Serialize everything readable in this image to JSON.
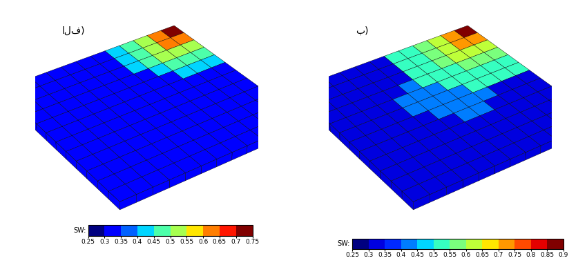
{
  "chart_data": [
    {
      "type": "heatmap",
      "title": "الف)",
      "tick_labels": false,
      "cells": [
        [
          0.75,
          0.6,
          0.5,
          0.45,
          0.4,
          0.3,
          0.3,
          0.3,
          0.3,
          0.3,
          0.3,
          0.3
        ],
        [
          0.6,
          0.6,
          0.5,
          0.45,
          0.4,
          0.3,
          0.3,
          0.3,
          0.3,
          0.3,
          0.3,
          0.3
        ],
        [
          0.5,
          0.5,
          0.5,
          0.45,
          0.4,
          0.3,
          0.3,
          0.3,
          0.3,
          0.3,
          0.3,
          0.3
        ],
        [
          0.45,
          0.45,
          0.45,
          0.4,
          0.3,
          0.3,
          0.3,
          0.3,
          0.3,
          0.3,
          0.3,
          0.3
        ],
        [
          0.4,
          0.4,
          0.4,
          0.3,
          0.3,
          0.3,
          0.3,
          0.3,
          0.3,
          0.3,
          0.3,
          0.3
        ],
        [
          0.3,
          0.3,
          0.3,
          0.3,
          0.3,
          0.3,
          0.3,
          0.3,
          0.3,
          0.3,
          0.3,
          0.3
        ],
        [
          0.3,
          0.3,
          0.3,
          0.3,
          0.3,
          0.3,
          0.3,
          0.3,
          0.3,
          0.3,
          0.3,
          0.3
        ],
        [
          0.3,
          0.3,
          0.3,
          0.3,
          0.3,
          0.3,
          0.3,
          0.3,
          0.3,
          0.3,
          0.3,
          0.3
        ],
        [
          0.3,
          0.3,
          0.3,
          0.3,
          0.3,
          0.3,
          0.3,
          0.3,
          0.3,
          0.3,
          0.3,
          0.3
        ],
        [
          0.3,
          0.3,
          0.3,
          0.3,
          0.3,
          0.3,
          0.3,
          0.3,
          0.3,
          0.3,
          0.3,
          0.3
        ],
        [
          0.3,
          0.3,
          0.3,
          0.3,
          0.3,
          0.3,
          0.3,
          0.3,
          0.3,
          0.3,
          0.3,
          0.3
        ],
        [
          0.3,
          0.3,
          0.3,
          0.3,
          0.3,
          0.3,
          0.3,
          0.3,
          0.3,
          0.3,
          0.3,
          0.3
        ]
      ],
      "colorbar": {
        "label": "SW:",
        "range": [
          0.25,
          0.75
        ],
        "ticks": [
          0.25,
          0.3,
          0.35,
          0.4,
          0.45,
          0.5,
          0.55,
          0.6,
          0.65,
          0.7,
          0.75
        ]
      }
    },
    {
      "type": "heatmap",
      "title": "ب)",
      "tick_labels": false,
      "cells": [
        [
          0.9,
          0.7,
          0.6,
          0.55,
          0.5,
          0.5,
          0.3,
          0.3,
          0.3,
          0.3,
          0.3,
          0.3
        ],
        [
          0.7,
          0.7,
          0.6,
          0.55,
          0.5,
          0.5,
          0.3,
          0.3,
          0.3,
          0.3,
          0.3,
          0.3
        ],
        [
          0.6,
          0.6,
          0.6,
          0.55,
          0.5,
          0.5,
          0.3,
          0.3,
          0.3,
          0.3,
          0.3,
          0.3
        ],
        [
          0.55,
          0.55,
          0.55,
          0.5,
          0.5,
          0.5,
          0.4,
          0.3,
          0.3,
          0.3,
          0.3,
          0.3
        ],
        [
          0.5,
          0.5,
          0.5,
          0.5,
          0.5,
          0.4,
          0.4,
          0.4,
          0.3,
          0.3,
          0.3,
          0.3
        ],
        [
          0.5,
          0.5,
          0.5,
          0.5,
          0.4,
          0.4,
          0.4,
          0.4,
          0.3,
          0.3,
          0.3,
          0.3
        ],
        [
          0.3,
          0.3,
          0.3,
          0.4,
          0.4,
          0.4,
          0.4,
          0.3,
          0.3,
          0.3,
          0.3,
          0.3
        ],
        [
          0.3,
          0.3,
          0.3,
          0.3,
          0.4,
          0.4,
          0.3,
          0.3,
          0.3,
          0.3,
          0.3,
          0.3
        ],
        [
          0.3,
          0.3,
          0.3,
          0.3,
          0.3,
          0.3,
          0.3,
          0.3,
          0.3,
          0.3,
          0.3,
          0.3
        ],
        [
          0.3,
          0.3,
          0.3,
          0.3,
          0.3,
          0.3,
          0.3,
          0.3,
          0.3,
          0.3,
          0.3,
          0.3
        ],
        [
          0.3,
          0.3,
          0.3,
          0.3,
          0.3,
          0.3,
          0.3,
          0.3,
          0.3,
          0.3,
          0.3,
          0.3
        ],
        [
          0.3,
          0.3,
          0.3,
          0.3,
          0.3,
          0.3,
          0.3,
          0.3,
          0.3,
          0.3,
          0.3,
          0.3
        ]
      ],
      "colorbar": {
        "label": "SW:",
        "range": [
          0.25,
          0.9
        ],
        "ticks": [
          0.25,
          0.3,
          0.35,
          0.4,
          0.45,
          0.5,
          0.55,
          0.6,
          0.65,
          0.7,
          0.75,
          0.8,
          0.85,
          0.9
        ]
      }
    }
  ]
}
